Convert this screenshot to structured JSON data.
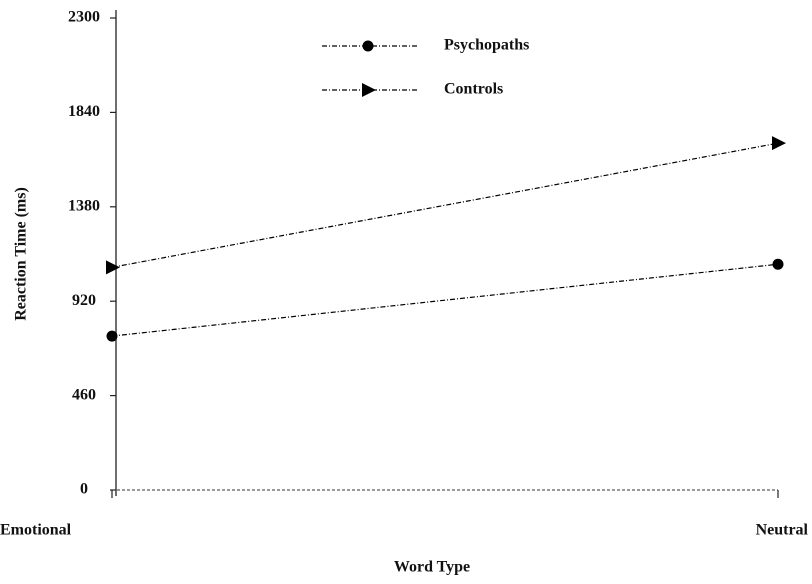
{
  "chart_data": {
    "type": "line",
    "x_label": "Word Type",
    "y_label": "Reaction Time (ms)",
    "categories": [
      "Emotional",
      "Neutral"
    ],
    "series": [
      {
        "name": "Psychopaths",
        "color": "#000000",
        "marker": "circle",
        "values": [
          750,
          1100
        ]
      },
      {
        "name": "Controls",
        "color": "#000000",
        "marker": "triangle-right",
        "values": [
          1085,
          1690
        ]
      }
    ],
    "ylim": [
      0,
      2300
    ],
    "yticks": [
      0,
      460,
      920,
      1380,
      1840,
      2300
    ],
    "legend": "top"
  }
}
